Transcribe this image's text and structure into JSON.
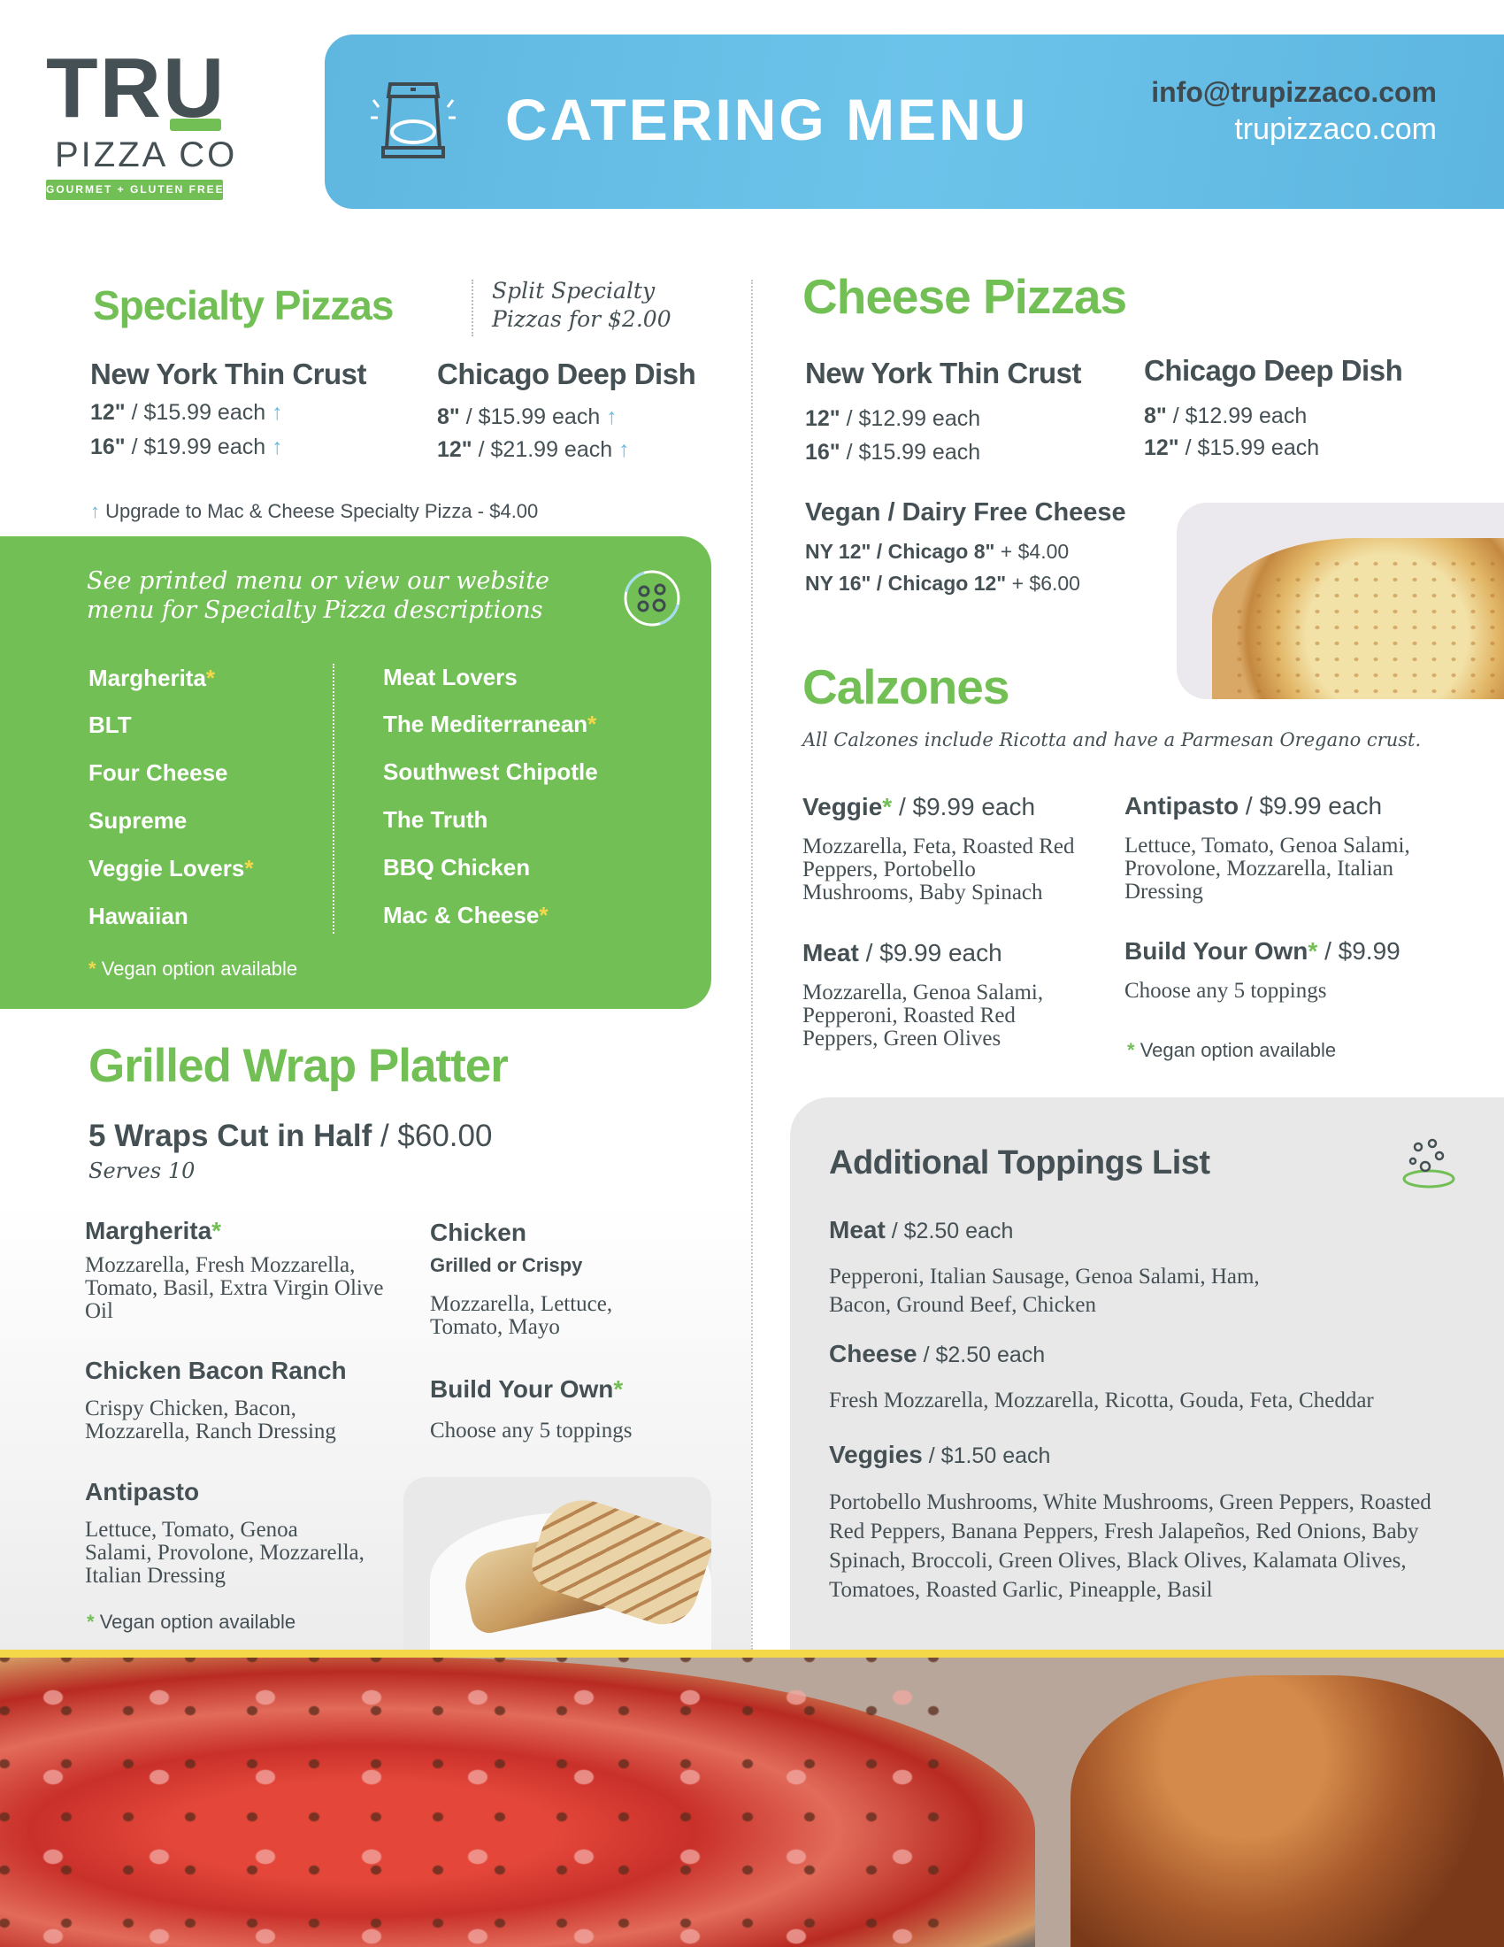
{
  "logo": {
    "line1": "TRU",
    "line2": "PIZZA CO",
    "tagline": "GOURMET + GLUTEN FREE"
  },
  "header": {
    "title": "CATERING MENU",
    "email": "info@trupizzaco.com",
    "website": "trupizzaco.com",
    "icon": "pizza-box-icon"
  },
  "colors": {
    "green": "#72bf55",
    "blue": "#62bde6",
    "dark": "#455055",
    "yellow": "#f5d84a",
    "gray_panel": "#e8e8e8"
  },
  "marks": {
    "vegan": "*",
    "upgrade": "↑"
  },
  "specialty": {
    "title": "Specialty Pizzas",
    "split_note_1": "Split Specialty",
    "split_note_2": "Pizzas for $2.00",
    "ny": {
      "name": "New York Thin Crust",
      "sizes": [
        {
          "size": "12\"",
          "price": " / $15.99 each"
        },
        {
          "size": "16\"",
          "price": " / $19.99 each"
        }
      ]
    },
    "chicago": {
      "name": "Chicago Deep Dish",
      "sizes": [
        {
          "size": "8\"",
          "price": " / $15.99 each"
        },
        {
          "size": "12\"",
          "price": " / $21.99 each"
        }
      ]
    },
    "upgrade_note": "Upgrade to Mac & Cheese Specialty Pizza - $4.00",
    "box_note_1": "See printed menu or view our website",
    "box_note_2": "menu for Specialty Pizza descriptions",
    "left_items": [
      {
        "name": "Margherita",
        "vegan": true
      },
      {
        "name": "BLT"
      },
      {
        "name": "Four Cheese"
      },
      {
        "name": "Supreme"
      },
      {
        "name": "Veggie Lovers",
        "vegan": true
      },
      {
        "name": "Hawaiian"
      }
    ],
    "right_items": [
      {
        "name": "Meat Lovers"
      },
      {
        "name": "The Mediterranean",
        "vegan": true
      },
      {
        "name": "Southwest Chipotle"
      },
      {
        "name": "The Truth"
      },
      {
        "name": "BBQ Chicken"
      },
      {
        "name": "Mac & Cheese",
        "vegan": true
      }
    ],
    "vegan_note": "Vegan option available"
  },
  "wraps": {
    "title": "Grilled Wrap Platter",
    "offer": "5 Wraps Cut in Half",
    "price": " / $60.00",
    "serves": "Serves 10",
    "items": [
      {
        "name": "Margherita",
        "vegan": true,
        "desc": "Mozzarella, Fresh Mozzarella, Tomato, Basil, Extra Virgin Olive Oil"
      },
      {
        "name": "Chicken Bacon Ranch",
        "desc": "Crispy Chicken, Bacon, Mozzarella, Ranch Dressing"
      },
      {
        "name": "Antipasto",
        "desc": "Lettuce, Tomato, Genoa Salami, Provolone, Mozzarella, Italian Dressing"
      },
      {
        "name": "Chicken",
        "option": "Grilled or Crispy",
        "desc": "Mozzarella, Lettuce, Tomato, Mayo"
      },
      {
        "name": "Build Your Own",
        "vegan": true,
        "desc": "Choose any 5 toppings"
      }
    ],
    "vegan_note": "Vegan option available"
  },
  "cheese": {
    "title": "Cheese Pizzas",
    "ny": {
      "name": "New York Thin Crust",
      "sizes": [
        {
          "size": "12\"",
          "price": " / $12.99 each"
        },
        {
          "size": "16\"",
          "price": " / $15.99 each"
        }
      ]
    },
    "chicago": {
      "name": "Chicago Deep Dish",
      "sizes": [
        {
          "size": "8\"",
          "price": " / $12.99 each"
        },
        {
          "size": "12\"",
          "price": " / $15.99 each"
        }
      ]
    },
    "vegan_title": "Vegan / Dairy Free Cheese",
    "vegan_lines": [
      {
        "label": "NY 12\" / Chicago 8\"",
        "price": " + $4.00"
      },
      {
        "label": "NY 16\" / Chicago 12\"",
        "price": " + $6.00"
      }
    ]
  },
  "calzones": {
    "title": "Calzones",
    "note": "All Calzones include Ricotta and have a Parmesan Oregano crust.",
    "items": [
      {
        "name": "Veggie",
        "vegan": true,
        "price": " / $9.99 each",
        "desc": "Mozzarella, Feta, Roasted Red Peppers, Portobello Mushrooms, Baby Spinach"
      },
      {
        "name": "Antipasto",
        "price": " / $9.99 each",
        "desc": "Lettuce, Tomato, Genoa Salami, Provolone, Mozzarella, Italian Dressing"
      },
      {
        "name": "Meat",
        "price": " / $9.99 each",
        "desc": "Mozzarella, Genoa Salami, Pepperoni, Roasted Red Peppers, Green Olives"
      },
      {
        "name": "Build Your Own",
        "vegan": true,
        "price": " / $9.99",
        "desc": "Choose any 5 toppings"
      }
    ],
    "vegan_note": "Vegan option available"
  },
  "toppings": {
    "title": "Additional Toppings List",
    "groups": [
      {
        "name": "Meat",
        "price": " / $2.50 each",
        "items": "Pepperoni, Italian Sausage, Genoa Salami, Ham, Bacon, Ground Beef, Chicken"
      },
      {
        "name": "Cheese",
        "price": " / $2.50 each",
        "items": "Fresh Mozzarella, Mozzarella, Ricotta, Gouda, Feta, Cheddar"
      },
      {
        "name": "Veggies",
        "price": " / $1.50 each",
        "items": "Portobello Mushrooms, White Mushrooms, Green Peppers, Roasted Red Peppers, Banana Peppers, Fresh Jalapeños, Red Onions, Baby Spinach, Broccoli, Green Olives, Black Olives, Kalamata Olives, Tomatoes, Roasted Garlic, Pineapple, Basil"
      }
    ]
  }
}
